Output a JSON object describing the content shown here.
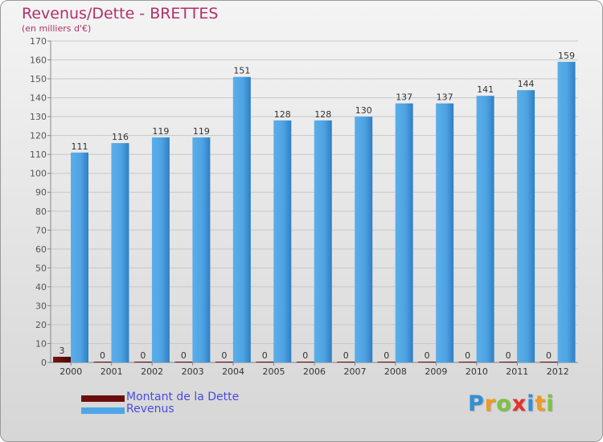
{
  "chart_data": {
    "type": "bar",
    "title": "Revenus/Dette - BRETTES",
    "subtitle": "(en milliers d'€)",
    "categories": [
      "2000",
      "2001",
      "2002",
      "2003",
      "2004",
      "2005",
      "2006",
      "2007",
      "2008",
      "2009",
      "2010",
      "2011",
      "2012"
    ],
    "series": [
      {
        "name": "Montant de la Dette",
        "color": "#6b0d0d",
        "values": [
          3,
          0,
          0,
          0,
          0,
          0,
          0,
          0,
          0,
          0,
          0,
          0,
          0
        ]
      },
      {
        "name": "Revenus",
        "color": "#4da6e8",
        "values": [
          111,
          116,
          119,
          119,
          151,
          128,
          128,
          130,
          137,
          137,
          141,
          144,
          159
        ]
      }
    ],
    "ylim": [
      0,
      170
    ],
    "yticks": [
      0,
      10,
      20,
      30,
      40,
      50,
      60,
      70,
      80,
      90,
      100,
      110,
      120,
      130,
      140,
      150,
      160,
      170
    ],
    "grid": true,
    "legend_position": "bottom-left"
  },
  "legend": {
    "debt_label": "Montant de la Dette",
    "revenue_label": "Revenus"
  },
  "logo": {
    "letters": [
      "P",
      "r",
      "o",
      "x",
      "i",
      "t",
      "i"
    ],
    "colors": [
      "#2f8fd8",
      "#f29a1c",
      "#7cc242",
      "#e8322a",
      "#2f8fd8",
      "#f29a1c",
      "#7cc242"
    ]
  }
}
